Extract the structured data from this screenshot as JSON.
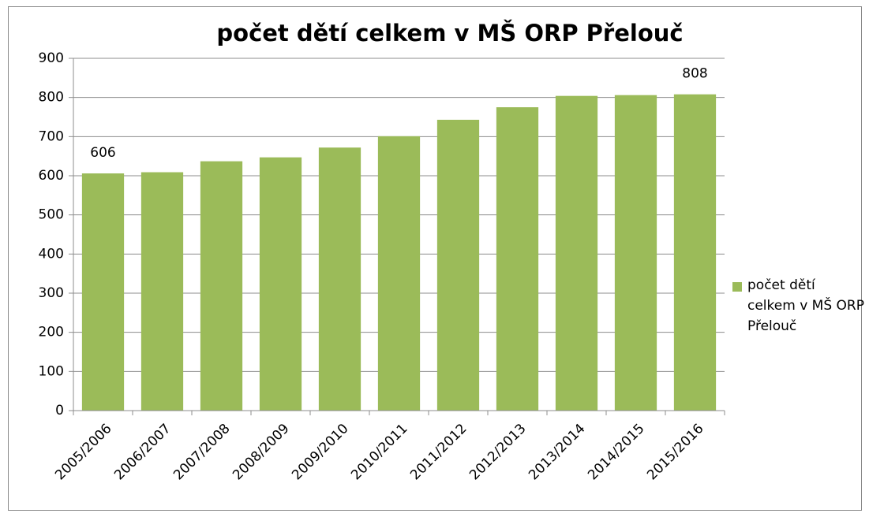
{
  "chart_data": {
    "type": "bar",
    "title": "počet dětí celkem v MŠ ORP Přelouč",
    "categories": [
      "2005/2006",
      "2006/2007",
      "2007/2008",
      "2008/2009",
      "2009/2010",
      "2010/2011",
      "2011/2012",
      "2012/2013",
      "2013/2014",
      "2014/2015",
      "2015/2016"
    ],
    "series": [
      {
        "name": "počet dětí celkem v MŠ ORP Přelouč",
        "color": "#9bbb59",
        "values": [
          606,
          609,
          637,
          647,
          672,
          701,
          743,
          775,
          804,
          806,
          808
        ],
        "value_labels": [
          "606",
          null,
          null,
          null,
          null,
          null,
          null,
          null,
          null,
          null,
          "808"
        ]
      }
    ],
    "ylim": [
      0,
      900
    ],
    "yticks": [
      0,
      100,
      200,
      300,
      400,
      500,
      600,
      700,
      800,
      900
    ],
    "grid": true,
    "legend": "right"
  }
}
